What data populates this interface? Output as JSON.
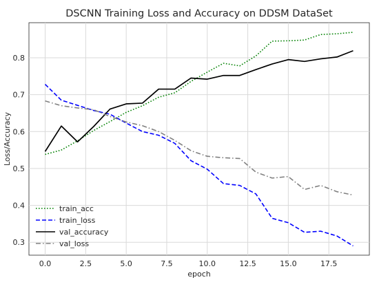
{
  "chart_data": {
    "type": "line",
    "title": "DSCNN Training Loss and Accuracy on DDSM DataSet",
    "xlabel": "epoch",
    "ylabel": "Loss/Accuracy",
    "xlim": [
      -1,
      20
    ],
    "ylim": [
      0.265,
      0.895
    ],
    "xticks": [
      0.0,
      2.5,
      5.0,
      7.5,
      10.0,
      12.5,
      15.0,
      17.5
    ],
    "xtick_labels": [
      "0.0",
      "2.5",
      "5.0",
      "7.5",
      "10.0",
      "12.5",
      "15.0",
      "17.5"
    ],
    "yticks": [
      0.3,
      0.4,
      0.5,
      0.6,
      0.7,
      0.8
    ],
    "ytick_labels": [
      "0.3",
      "0.4",
      "0.5",
      "0.6",
      "0.7",
      "0.8"
    ],
    "grid": true,
    "legend_position": "lower-left",
    "x": [
      0,
      1,
      2,
      3,
      4,
      5,
      6,
      7,
      8,
      9,
      10,
      11,
      12,
      13,
      14,
      15,
      16,
      17,
      18,
      19
    ],
    "series": [
      {
        "name": "train_acc",
        "color": "#008000",
        "style": "dotted",
        "values": [
          0.538,
          0.55,
          0.575,
          0.603,
          0.627,
          0.652,
          0.67,
          0.693,
          0.705,
          0.736,
          0.761,
          0.785,
          0.778,
          0.805,
          0.845,
          0.846,
          0.848,
          0.863,
          0.865,
          0.869
        ]
      },
      {
        "name": "train_loss",
        "color": "#0000ff",
        "style": "dashed",
        "values": [
          0.728,
          0.685,
          0.671,
          0.657,
          0.647,
          0.623,
          0.6,
          0.59,
          0.568,
          0.521,
          0.498,
          0.459,
          0.454,
          0.431,
          0.365,
          0.353,
          0.327,
          0.33,
          0.317,
          0.29
        ]
      },
      {
        "name": "val_accuracy",
        "color": "#000000",
        "style": "solid",
        "values": [
          0.546,
          0.615,
          0.572,
          0.614,
          0.661,
          0.675,
          0.677,
          0.715,
          0.715,
          0.745,
          0.742,
          0.752,
          0.752,
          0.768,
          0.783,
          0.795,
          0.79,
          0.797,
          0.802,
          0.819
        ]
      },
      {
        "name": "val_loss",
        "color": "#808080",
        "style": "dashdot",
        "values": [
          0.683,
          0.67,
          0.664,
          0.659,
          0.641,
          0.626,
          0.616,
          0.6,
          0.576,
          0.548,
          0.533,
          0.529,
          0.527,
          0.49,
          0.474,
          0.478,
          0.443,
          0.454,
          0.437,
          0.428
        ]
      }
    ]
  }
}
